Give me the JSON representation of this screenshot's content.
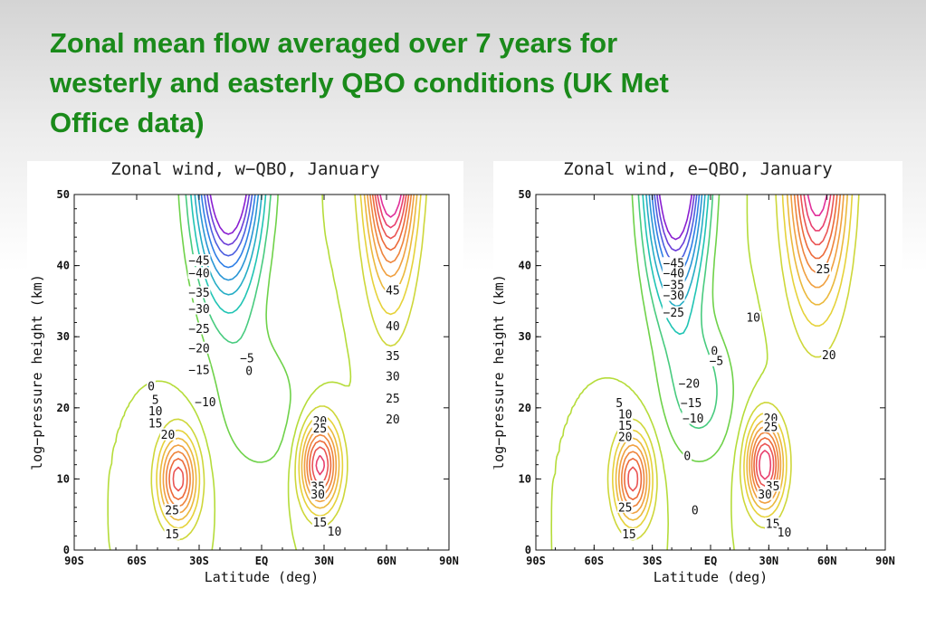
{
  "slide": {
    "title_lines": [
      "Zonal mean flow averaged over 7 years for",
      "westerly and easterly QBO conditions (UK Met",
      "Office data)"
    ]
  },
  "colors": {
    "title": "#1a8a1a",
    "contour_scale": [
      {
        "value": -45,
        "color": "#8a1fd1"
      },
      {
        "value": -30,
        "color": "#2f7fe6"
      },
      {
        "value": -15,
        "color": "#20c4b4"
      },
      {
        "value": -5,
        "color": "#6fd24a"
      },
      {
        "value": 0,
        "color": "#b5dc3a"
      },
      {
        "value": 10,
        "color": "#e6d23a"
      },
      {
        "value": 20,
        "color": "#f0a040"
      },
      {
        "value": 30,
        "color": "#ec6a3a"
      },
      {
        "value": 40,
        "color": "#e8406e"
      },
      {
        "value": 45,
        "color": "#e02f9a"
      }
    ]
  },
  "chart_data": [
    {
      "type": "contour",
      "title": "Zonal wind, w−QBO, January",
      "xlabel": "Latitude (deg)",
      "ylabel": "log−pressure height (km)",
      "xticks": [
        {
          "value": -90,
          "label": "90S"
        },
        {
          "value": -60,
          "label": "60S"
        },
        {
          "value": -30,
          "label": "30S"
        },
        {
          "value": 0,
          "label": "EQ"
        },
        {
          "value": 30,
          "label": "30N"
        },
        {
          "value": 60,
          "label": "60N"
        },
        {
          "value": 90,
          "label": "90N"
        }
      ],
      "yticks": [
        {
          "value": 0,
          "label": "0"
        },
        {
          "value": 10,
          "label": "10"
        },
        {
          "value": 20,
          "label": "20"
        },
        {
          "value": 30,
          "label": "30"
        },
        {
          "value": 40,
          "label": "40"
        },
        {
          "value": 50,
          "label": "50"
        }
      ],
      "xlim": [
        -90,
        90
      ],
      "ylim": [
        0,
        50
      ],
      "features": [
        {
          "kind": "easterly_jet",
          "lat": -16,
          "z": 58,
          "amp": -75,
          "wlat": 15,
          "wz": 19
        },
        {
          "kind": "westerly_jet",
          "lat": 62,
          "z": 62,
          "amp": 80,
          "wlat": 11,
          "wz": 20
        },
        {
          "kind": "westerly_jet",
          "lat": 28,
          "z": 12,
          "amp": 43,
          "wlat": 9,
          "wz": 6
        },
        {
          "kind": "westerly_jet",
          "lat": -40,
          "z": 10,
          "amp": 38,
          "wlat": 9,
          "wz": 6
        },
        {
          "kind": "background",
          "lat": 0,
          "z": 20,
          "amp": -8,
          "wlat": 22,
          "wz": 11
        }
      ],
      "contour_labels": [
        {
          "text": "−45",
          "lat": -30,
          "z": 40.7
        },
        {
          "text": "−40",
          "lat": -30,
          "z": 38.9
        },
        {
          "text": "−35",
          "lat": -30,
          "z": 36.2
        },
        {
          "text": "−30",
          "lat": -30,
          "z": 33.9
        },
        {
          "text": "−25",
          "lat": -30,
          "z": 31.1
        },
        {
          "text": "−20",
          "lat": -30,
          "z": 28.4
        },
        {
          "text": "−15",
          "lat": -30,
          "z": 25.3
        },
        {
          "text": "−10",
          "lat": -27,
          "z": 20.8
        },
        {
          "text": "−5",
          "lat": -7,
          "z": 27.0
        },
        {
          "text": "0",
          "lat": -6,
          "z": 25.2
        },
        {
          "text": "0",
          "lat": -53,
          "z": 23.0
        },
        {
          "text": "5",
          "lat": -51,
          "z": 21.1
        },
        {
          "text": "10",
          "lat": -51,
          "z": 19.5
        },
        {
          "text": "15",
          "lat": -51,
          "z": 17.8
        },
        {
          "text": "20",
          "lat": -45,
          "z": 16.2
        },
        {
          "text": "25",
          "lat": -43,
          "z": 5.6
        },
        {
          "text": "15",
          "lat": -43,
          "z": 2.2
        },
        {
          "text": "20",
          "lat": 28,
          "z": 18.1
        },
        {
          "text": "25",
          "lat": 28,
          "z": 17.1
        },
        {
          "text": "35",
          "lat": 27,
          "z": 8.9
        },
        {
          "text": "30",
          "lat": 27,
          "z": 7.8
        },
        {
          "text": "15",
          "lat": 28,
          "z": 3.9
        },
        {
          "text": "10",
          "lat": 35,
          "z": 2.6
        },
        {
          "text": "45",
          "lat": 63,
          "z": 36.5
        },
        {
          "text": "40",
          "lat": 63,
          "z": 31.5
        },
        {
          "text": "35",
          "lat": 63,
          "z": 27.3
        },
        {
          "text": "30",
          "lat": 63,
          "z": 24.4
        },
        {
          "text": "25",
          "lat": 63,
          "z": 21.3
        },
        {
          "text": "20",
          "lat": 63,
          "z": 18.4
        }
      ]
    },
    {
      "type": "contour",
      "title": "Zonal wind, e−QBO, January",
      "xlabel": "Latitude (deg)",
      "ylabel": "log−pressure height (km)",
      "xticks": [
        {
          "value": -90,
          "label": "90S"
        },
        {
          "value": -60,
          "label": "60S"
        },
        {
          "value": -30,
          "label": "30S"
        },
        {
          "value": 0,
          "label": "EQ"
        },
        {
          "value": 30,
          "label": "30N"
        },
        {
          "value": 60,
          "label": "60N"
        },
        {
          "value": 90,
          "label": "90N"
        }
      ],
      "yticks": [
        {
          "value": 0,
          "label": "0"
        },
        {
          "value": 10,
          "label": "10"
        },
        {
          "value": 20,
          "label": "20"
        },
        {
          "value": 30,
          "label": "30"
        },
        {
          "value": 40,
          "label": "40"
        },
        {
          "value": 50,
          "label": "50"
        }
      ],
      "xlim": [
        -90,
        90
      ],
      "ylim": [
        0,
        50
      ],
      "features": [
        {
          "kind": "easterly_jet",
          "lat": -18,
          "z": 58,
          "amp": -75,
          "wlat": 14,
          "wz": 20
        },
        {
          "kind": "westerly_jet",
          "lat": 55,
          "z": 55,
          "amp": 55,
          "wlat": 14,
          "wz": 18
        },
        {
          "kind": "westerly_jet",
          "lat": 28,
          "z": 12,
          "amp": 45,
          "wlat": 9,
          "wz": 6
        },
        {
          "kind": "westerly_jet",
          "lat": -40,
          "z": 10,
          "amp": 38,
          "wlat": 9,
          "wz": 6
        },
        {
          "kind": "background",
          "lat": -5,
          "z": 22,
          "amp": -12,
          "wlat": 18,
          "wz": 10
        }
      ],
      "contour_labels": [
        {
          "text": "−45",
          "lat": -19,
          "z": 40.3
        },
        {
          "text": "−40",
          "lat": -19,
          "z": 38.9
        },
        {
          "text": "−35",
          "lat": -19,
          "z": 37.3
        },
        {
          "text": "−30",
          "lat": -19,
          "z": 35.8
        },
        {
          "text": "−25",
          "lat": -19,
          "z": 33.4
        },
        {
          "text": "−20",
          "lat": -11,
          "z": 23.4
        },
        {
          "text": "−15",
          "lat": -10,
          "z": 20.7
        },
        {
          "text": "−10",
          "lat": -9,
          "z": 18.5
        },
        {
          "text": "0",
          "lat": 2,
          "z": 28.0
        },
        {
          "text": "−5",
          "lat": 3,
          "z": 26.6
        },
        {
          "text": "0",
          "lat": -12,
          "z": 13.2
        },
        {
          "text": "0",
          "lat": -8,
          "z": 5.6
        },
        {
          "text": "5",
          "lat": -47,
          "z": 20.7
        },
        {
          "text": "10",
          "lat": -44,
          "z": 19.1
        },
        {
          "text": "15",
          "lat": -44,
          "z": 17.5
        },
        {
          "text": "20",
          "lat": -44,
          "z": 15.9
        },
        {
          "text": "25",
          "lat": -44,
          "z": 6.0
        },
        {
          "text": "15",
          "lat": -42,
          "z": 2.2
        },
        {
          "text": "20",
          "lat": 31,
          "z": 18.5
        },
        {
          "text": "25",
          "lat": 31,
          "z": 17.3
        },
        {
          "text": "35",
          "lat": 32,
          "z": 9.0
        },
        {
          "text": "30",
          "lat": 28,
          "z": 7.8
        },
        {
          "text": "15",
          "lat": 32,
          "z": 3.7
        },
        {
          "text": "10",
          "lat": 38,
          "z": 2.5
        },
        {
          "text": "10",
          "lat": 22,
          "z": 32.7
        },
        {
          "text": "25",
          "lat": 58,
          "z": 39.5
        },
        {
          "text": "20",
          "lat": 61,
          "z": 27.4
        }
      ]
    }
  ]
}
